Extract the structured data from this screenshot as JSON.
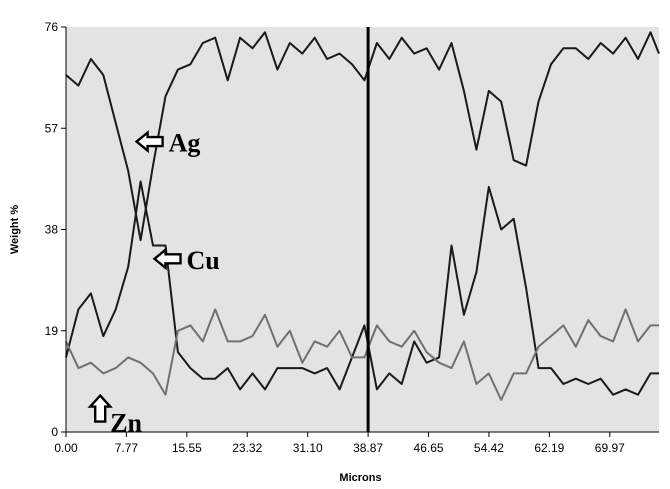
{
  "chart_data": {
    "type": "line",
    "xlabel": "Microns",
    "ylabel": "Weight %",
    "xlim": [
      0,
      76.3
    ],
    "ylim": [
      0,
      76
    ],
    "x_ticks": [
      "0.00",
      "7.77",
      "15.55",
      "23.32",
      "31.10",
      "38.87",
      "46.65",
      "54.42",
      "62.19",
      "69.97"
    ],
    "y_ticks": [
      "0",
      "19",
      "38",
      "57",
      "76"
    ],
    "marker_line_x": 38.87,
    "grid": false,
    "annotations": [
      {
        "text": "Ag",
        "series": "Ag",
        "arrow": "left",
        "x": 10.5,
        "y": 54.5
      },
      {
        "text": "Cu",
        "series": "Cu",
        "arrow": "left",
        "x": 12.8,
        "y": 32.5
      },
      {
        "text": "Zn",
        "series": "Zn",
        "arrow": "up",
        "x": 4.4,
        "y": 4.2
      }
    ],
    "colors": {
      "background": "#e3e3e3",
      "Ag": "#1a1a1a",
      "Cu": "#1a1a1a",
      "Zn": "#707070",
      "marker": "#000000"
    },
    "series": [
      {
        "name": "Ag",
        "x": [
          0.0,
          1.6,
          3.2,
          4.8,
          6.4,
          8.0,
          9.6,
          11.2,
          12.8,
          14.4,
          16.0,
          17.6,
          19.2,
          20.8,
          22.4,
          24.0,
          25.6,
          27.2,
          28.8,
          30.4,
          32.0,
          33.6,
          35.2,
          36.8,
          38.4,
          40.0,
          41.6,
          43.2,
          44.8,
          46.4,
          48.0,
          49.6,
          51.2,
          52.8,
          54.4,
          56.0,
          57.6,
          59.2,
          60.8,
          62.4,
          64.0,
          65.6,
          67.2,
          68.8,
          70.4,
          72.0,
          73.6,
          75.2,
          76.3
        ],
        "values": [
          67,
          65,
          70,
          67,
          58,
          49,
          36,
          50,
          63,
          68,
          69,
          73,
          74,
          66,
          74,
          72,
          75,
          68,
          73,
          71,
          74,
          70,
          71,
          69,
          66,
          73,
          70,
          74,
          71,
          72,
          68,
          73,
          64,
          53,
          64,
          62,
          51,
          50,
          62,
          69,
          72,
          72,
          70,
          73,
          71,
          74,
          70,
          75,
          71
        ]
      },
      {
        "name": "Cu",
        "x": [
          0.0,
          1.6,
          3.2,
          4.8,
          6.4,
          8.0,
          9.6,
          11.2,
          12.8,
          14.4,
          16.0,
          17.6,
          19.2,
          20.8,
          22.4,
          24.0,
          25.6,
          27.2,
          28.8,
          30.4,
          32.0,
          33.6,
          35.2,
          36.8,
          38.4,
          40.0,
          41.6,
          43.2,
          44.8,
          46.4,
          48.0,
          49.6,
          51.2,
          52.8,
          54.4,
          56.0,
          57.6,
          59.2,
          60.8,
          62.4,
          64.0,
          65.6,
          67.2,
          68.8,
          70.4,
          72.0,
          73.6,
          75.2,
          76.3
        ],
        "values": [
          14,
          23,
          26,
          18,
          23,
          31,
          47,
          35,
          35,
          15,
          12,
          10,
          10,
          12,
          8,
          11,
          8,
          12,
          12,
          12,
          11,
          12,
          8,
          14,
          20,
          8,
          11,
          9,
          17,
          13,
          14,
          35,
          22,
          30,
          46,
          38,
          40,
          27,
          12,
          12,
          9,
          10,
          9,
          10,
          7,
          8,
          7,
          11,
          11
        ]
      },
      {
        "name": "Zn",
        "x": [
          0.0,
          1.6,
          3.2,
          4.8,
          6.4,
          8.0,
          9.6,
          11.2,
          12.8,
          14.4,
          16.0,
          17.6,
          19.2,
          20.8,
          22.4,
          24.0,
          25.6,
          27.2,
          28.8,
          30.4,
          32.0,
          33.6,
          35.2,
          36.8,
          38.4,
          40.0,
          41.6,
          43.2,
          44.8,
          46.4,
          48.0,
          49.6,
          51.2,
          52.8,
          54.4,
          56.0,
          57.6,
          59.2,
          60.8,
          62.4,
          64.0,
          65.6,
          67.2,
          68.8,
          70.4,
          72.0,
          73.6,
          75.2,
          76.3
        ],
        "values": [
          17,
          12,
          13,
          11,
          12,
          14,
          13,
          11,
          7,
          19,
          20,
          17,
          23,
          17,
          17,
          18,
          22,
          16,
          19,
          13,
          17,
          16,
          19,
          14,
          14,
          20,
          17,
          16,
          19,
          15,
          13,
          12,
          17,
          9,
          11,
          6,
          11,
          11,
          16,
          18,
          20,
          16,
          21,
          18,
          17,
          23,
          17,
          20,
          20
        ]
      }
    ]
  }
}
